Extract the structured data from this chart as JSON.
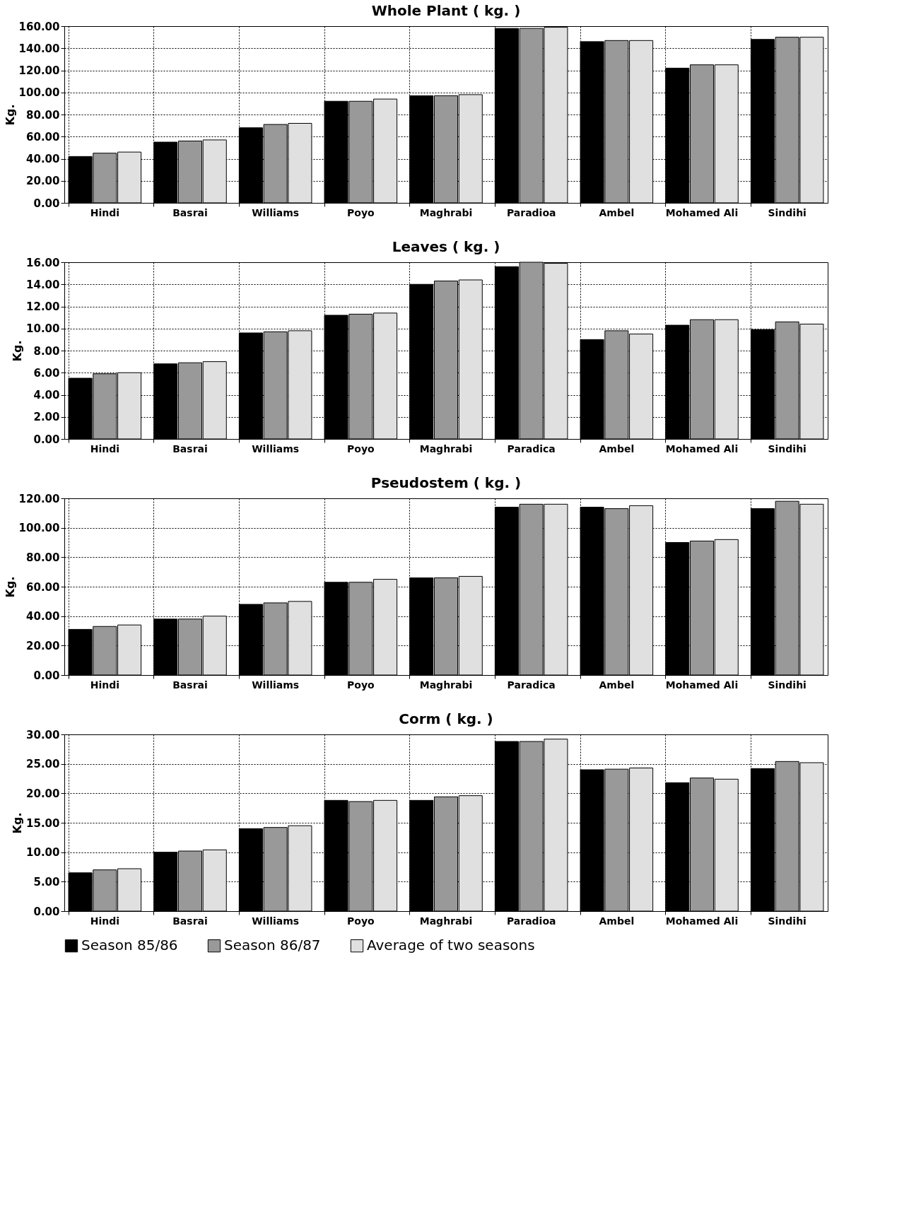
{
  "chart_data": [
    {
      "type": "bar",
      "title": "Whole Plant ( kg. )",
      "ylabel": "Kg.",
      "categories": [
        "Hindi",
        "Basrai",
        "Williams",
        "Poyo",
        "Maghrabi",
        "Paradioa",
        "Ambel",
        "Mohamed Ali",
        "Sindihi"
      ],
      "series": [
        {
          "color": "#000000",
          "values": [
            42,
            55,
            68,
            92,
            97,
            158,
            146,
            122,
            148
          ]
        },
        {
          "color": "#999999",
          "values": [
            45,
            56,
            71,
            92,
            97,
            158,
            147,
            125,
            150
          ]
        },
        {
          "color": "#e0e0e0",
          "values": [
            46,
            57,
            72,
            94,
            98,
            159,
            147,
            125,
            150
          ]
        }
      ],
      "ylim": [
        0,
        160
      ],
      "yticks": [
        {
          "value": 0,
          "label": "0.00"
        },
        {
          "value": 20,
          "label": "20.00"
        },
        {
          "value": 40,
          "label": "40.00"
        },
        {
          "value": 60,
          "label": "60.00"
        },
        {
          "value": 80,
          "label": "80.00"
        },
        {
          "value": 100,
          "label": "100.00"
        },
        {
          "value": 120,
          "label": "120.00"
        },
        {
          "value": 140,
          "label": "140.00"
        },
        {
          "value": 160,
          "label": "160.00"
        }
      ],
      "grid": true
    },
    {
      "type": "bar",
      "title": "Leaves ( kg. )",
      "ylabel": "Kg.",
      "categories": [
        "Hindi",
        "Basrai",
        "Williams",
        "Poyo",
        "Maghrabi",
        "Paradica",
        "Ambel",
        "Mohamed Ali",
        "Sindihi"
      ],
      "series": [
        {
          "color": "#000000",
          "values": [
            5.5,
            6.8,
            9.6,
            11.2,
            14.0,
            15.6,
            9.0,
            10.3,
            9.9
          ]
        },
        {
          "color": "#999999",
          "values": [
            5.9,
            6.9,
            9.7,
            11.3,
            14.3,
            16.0,
            9.8,
            10.8,
            10.6
          ]
        },
        {
          "color": "#e0e0e0",
          "values": [
            6.0,
            7.0,
            9.8,
            11.4,
            14.4,
            15.9,
            9.5,
            10.8,
            10.4
          ]
        }
      ],
      "ylim": [
        0,
        16
      ],
      "yticks": [
        {
          "value": 0,
          "label": "0.00"
        },
        {
          "value": 2,
          "label": "2.00"
        },
        {
          "value": 4,
          "label": "4.00"
        },
        {
          "value": 6,
          "label": "6.00"
        },
        {
          "value": 8,
          "label": "8.00"
        },
        {
          "value": 10,
          "label": "10.00"
        },
        {
          "value": 12,
          "label": "12.00"
        },
        {
          "value": 14,
          "label": "14.00"
        },
        {
          "value": 16,
          "label": "16.00"
        }
      ],
      "grid": true
    },
    {
      "type": "bar",
      "title": "Pseudostem ( kg. )",
      "ylabel": "Kg.",
      "categories": [
        "Hindi",
        "Basrai",
        "Williams",
        "Poyo",
        "Maghrabi",
        "Paradica",
        "Ambel",
        "Mohamed Ali",
        "Sindihi"
      ],
      "series": [
        {
          "color": "#000000",
          "values": [
            31,
            38,
            48,
            63,
            66,
            114,
            114,
            90,
            113
          ]
        },
        {
          "color": "#999999",
          "values": [
            33,
            38,
            49,
            63,
            66,
            116,
            113,
            91,
            118
          ]
        },
        {
          "color": "#e0e0e0",
          "values": [
            34,
            40,
            50,
            65,
            67,
            116,
            115,
            92,
            116
          ]
        }
      ],
      "ylim": [
        0,
        120
      ],
      "yticks": [
        {
          "value": 0,
          "label": "0.00"
        },
        {
          "value": 20,
          "label": "20.00"
        },
        {
          "value": 40,
          "label": "40.00"
        },
        {
          "value": 60,
          "label": "60.00"
        },
        {
          "value": 80,
          "label": "80.00"
        },
        {
          "value": 100,
          "label": "100.00"
        },
        {
          "value": 120,
          "label": "120.00"
        }
      ],
      "grid": true
    },
    {
      "type": "bar",
      "title": "Corm ( kg. )",
      "ylabel": "Kg.",
      "categories": [
        "Hindi",
        "Basrai",
        "Williams",
        "Poyo",
        "Maghrabi",
        "Paradioa",
        "Ambel",
        "Mohamed Ali",
        "Sindihi"
      ],
      "series": [
        {
          "name": "Season 85/86",
          "color": "#000000",
          "values": [
            6.5,
            10.0,
            14.0,
            18.8,
            18.8,
            28.8,
            24.0,
            21.8,
            24.2
          ]
        },
        {
          "name": "Season 86/87",
          "color": "#999999",
          "values": [
            7.0,
            10.2,
            14.2,
            18.6,
            19.4,
            28.8,
            24.1,
            22.6,
            25.4
          ]
        },
        {
          "name": "Average of two seasons",
          "color": "#e0e0e0",
          "values": [
            7.2,
            10.4,
            14.5,
            18.8,
            19.6,
            29.2,
            24.3,
            22.4,
            25.2
          ]
        }
      ],
      "ylim": [
        0,
        30
      ],
      "yticks": [
        {
          "value": 0,
          "label": "0.00"
        },
        {
          "value": 5,
          "label": "5.00"
        },
        {
          "value": 10,
          "label": "10.00"
        },
        {
          "value": 15,
          "label": "15.00"
        },
        {
          "value": 20,
          "label": "20.00"
        },
        {
          "value": 25,
          "label": "25.00"
        },
        {
          "value": 30,
          "label": "30.00"
        }
      ],
      "grid": true,
      "legend": "bottom"
    }
  ]
}
